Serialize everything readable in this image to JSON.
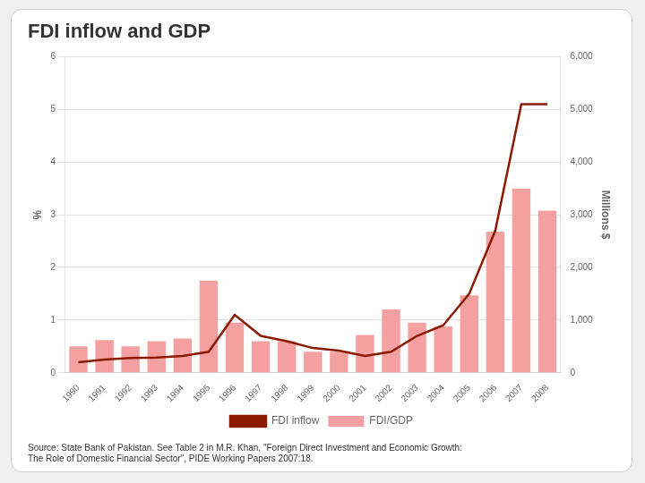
{
  "chart_data": {
    "type": "bar",
    "title": "FDI inflow and GDP",
    "annotations": [
      "Source: State Bank of Pakistan. See Table 2 in M.R. Khan, \"Foreign Direct Investment and Economic Growth:\nThe Role of Domestic Financial Sector\", PIDE Working Papers 2007:18."
    ],
    "categories": [
      "1990",
      "1991",
      "1992",
      "1993",
      "1994",
      "1995",
      "1996",
      "1997",
      "1998",
      "1999",
      "2000",
      "2001",
      "2002",
      "2003",
      "2004",
      "2005",
      "2006",
      "2007",
      "2008"
    ],
    "series": [
      {
        "name": "FDI/GDP",
        "type": "bar",
        "color": "#f4a0a0",
        "values": [
          0.5,
          0.62,
          0.5,
          0.6,
          0.65,
          1.75,
          0.95,
          0.6,
          0.6,
          0.4,
          0.4,
          0.72,
          1.2,
          0.95,
          0.88,
          1.47,
          2.68,
          3.5,
          3.08
        ]
      },
      {
        "name": "FDI inflow",
        "type": "line",
        "color": "#8b1a00",
        "axis": "y2",
        "values": [
          200,
          250,
          280,
          290,
          320,
          400,
          1100,
          700,
          600,
          470,
          420,
          320,
          400,
          700,
          900,
          1500,
          2700,
          5100,
          5100
        ]
      }
    ],
    "ylabel": "%",
    "y2label": "Millions $",
    "ylim": [
      0,
      6
    ],
    "yticks": [
      0,
      1,
      2,
      3,
      4,
      5,
      6
    ],
    "y2lim": [
      0,
      6000
    ],
    "y2ticks": [
      0,
      1000,
      2000,
      3000,
      4000,
      5000,
      6000
    ],
    "grid": true,
    "legend": "bottom"
  }
}
